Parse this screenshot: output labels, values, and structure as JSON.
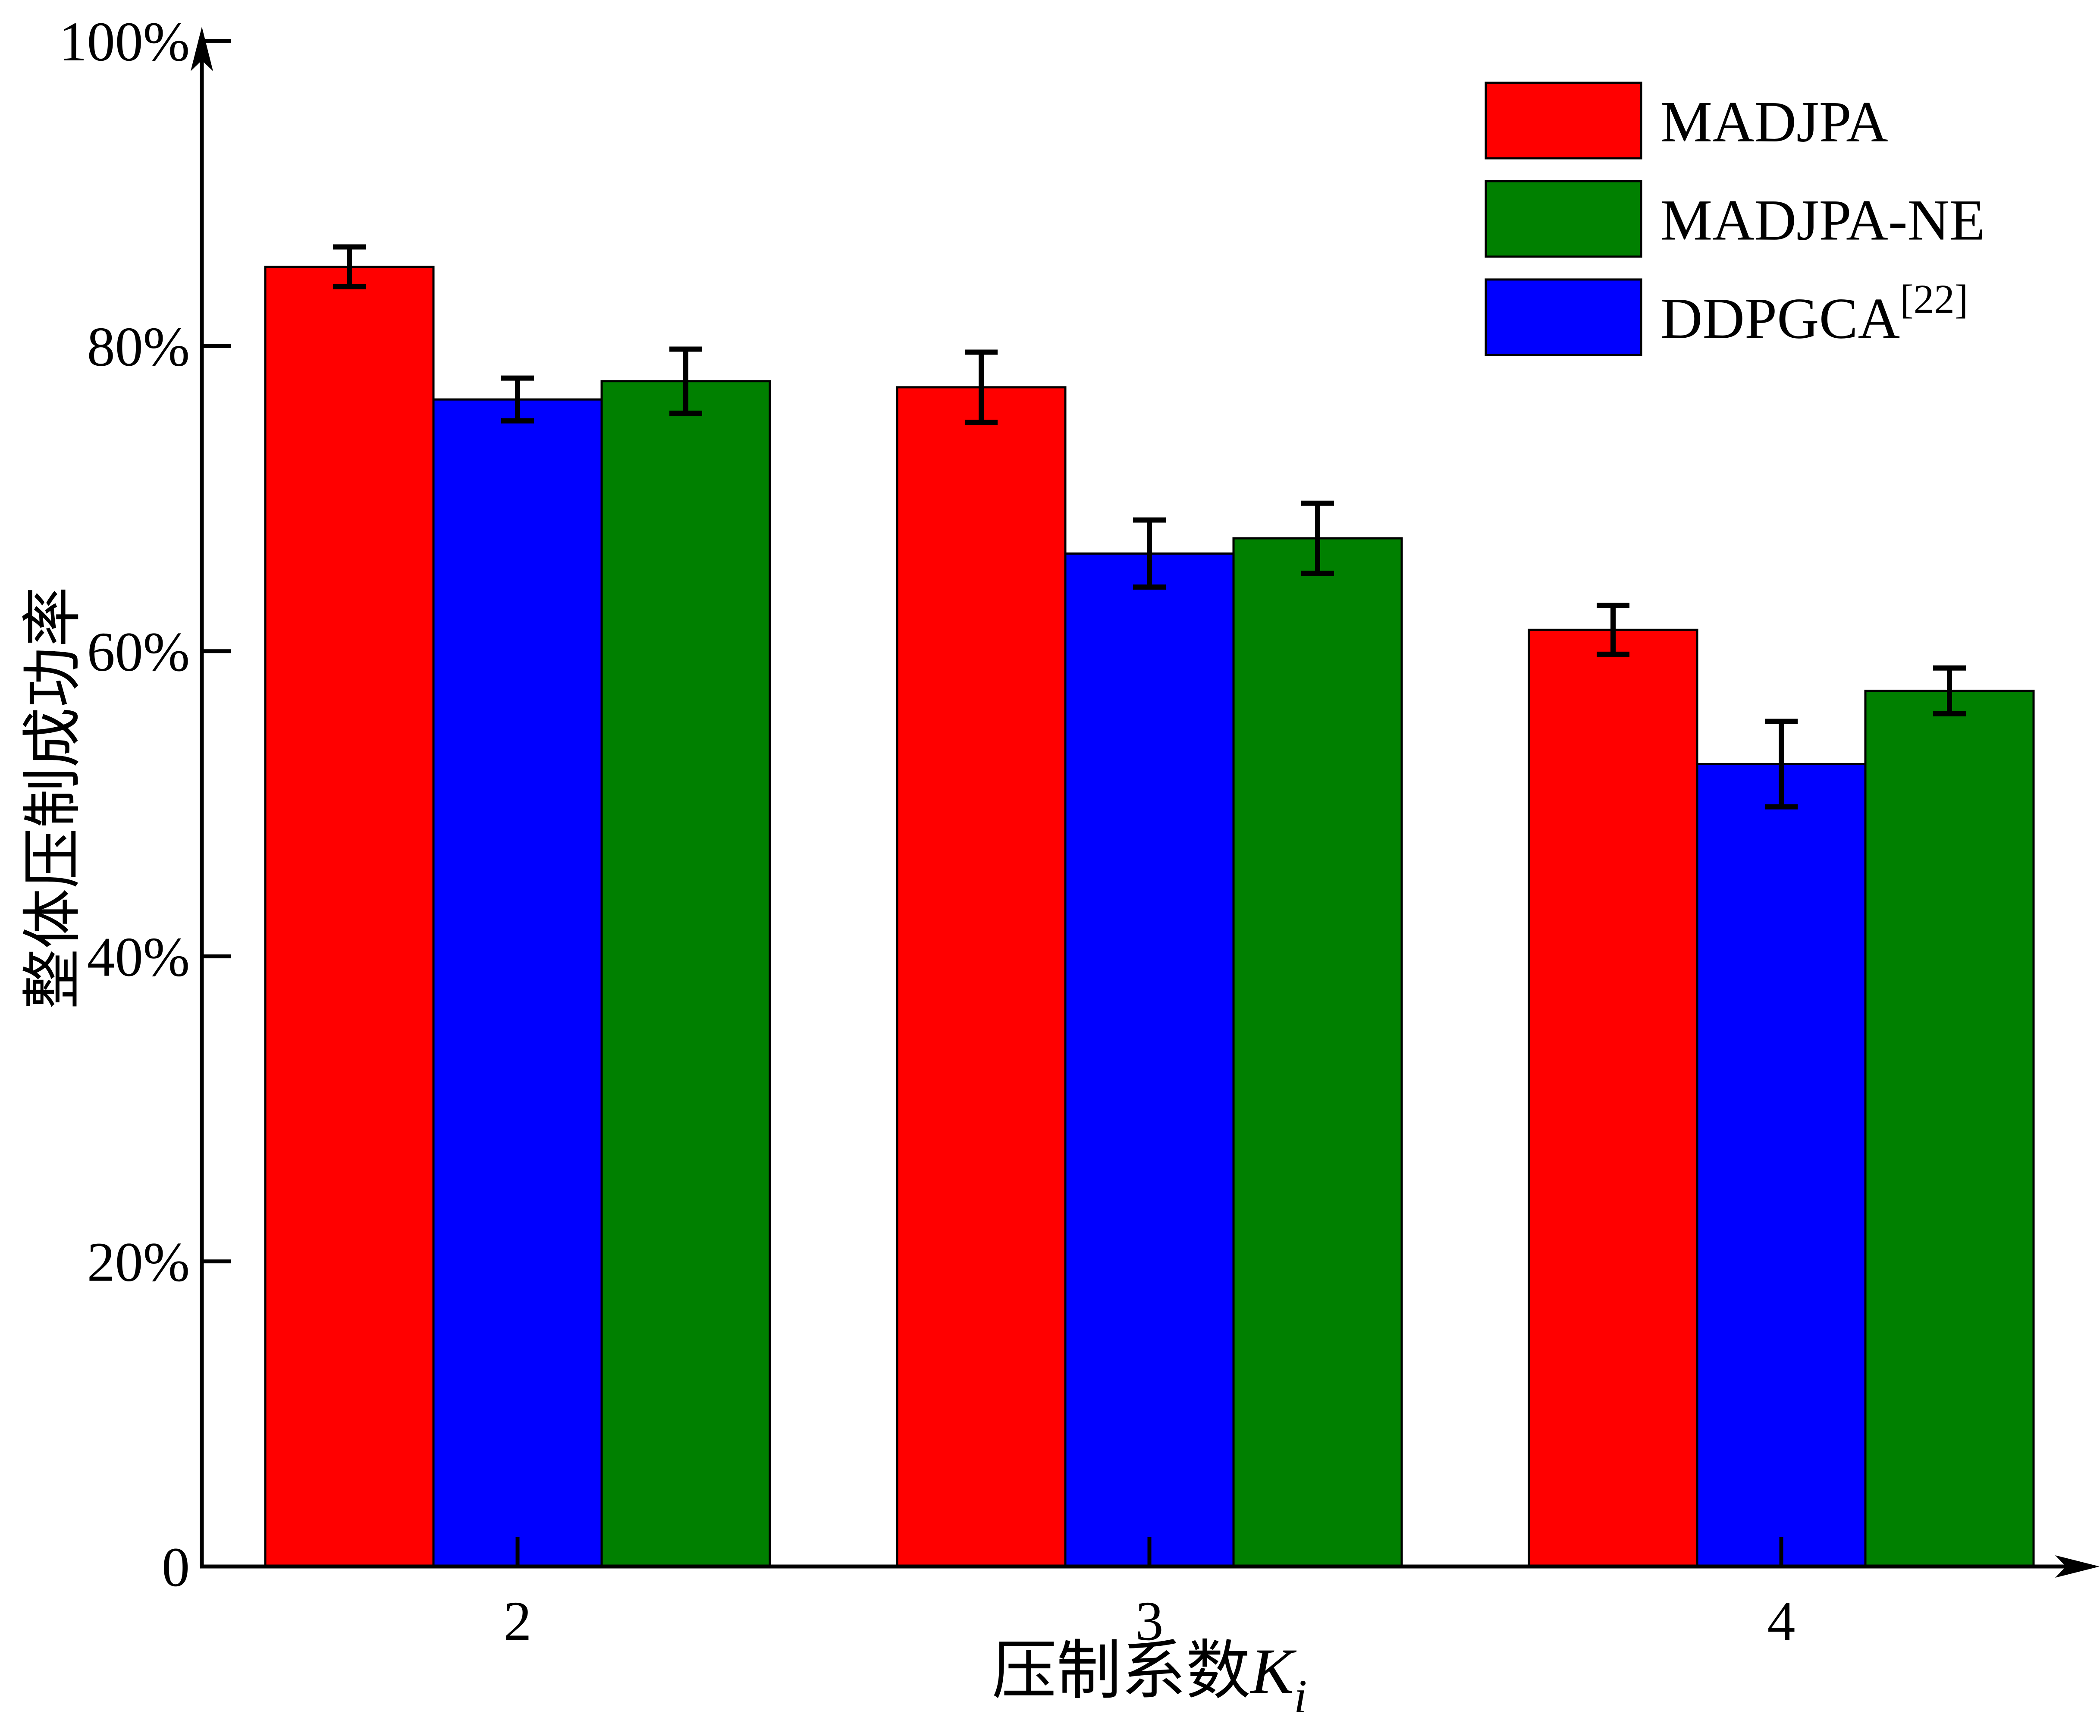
{
  "chart_data": {
    "type": "bar",
    "categories": [
      "2",
      "3",
      "4"
    ],
    "xlabel_main": "压制系数",
    "xlabel_var": "K",
    "xlabel_sub": "i",
    "ylabel": "整体压制成功率",
    "ylim": [
      0,
      100
    ],
    "yticks": [
      0,
      20,
      40,
      60,
      80,
      100
    ],
    "ytick_labels": [
      "0",
      "20%",
      "40%",
      "60%",
      "80%",
      "100%"
    ],
    "legend_position": "top-right",
    "grid": false,
    "series": [
      {
        "name": "MADJPA",
        "color": "#ff0000",
        "values": [
          85.2,
          77.3,
          61.4
        ],
        "errors": [
          1.3,
          2.3,
          1.6
        ]
      },
      {
        "name": "DDPGCA[22]",
        "color": "#0000ff",
        "values": [
          76.5,
          66.4,
          52.6
        ],
        "errors": [
          1.4,
          2.2,
          2.8
        ]
      },
      {
        "name": "MADJPA-NE",
        "color": "#008000",
        "values": [
          77.7,
          67.4,
          57.4
        ],
        "errors": [
          2.1,
          2.3,
          1.5
        ]
      }
    ],
    "legend": [
      {
        "label": "MADJPA",
        "color": "#ff0000"
      },
      {
        "label": "MADJPA-NE",
        "color": "#008000"
      },
      {
        "label": "DDPGCA",
        "sup": "[22]",
        "color": "#0000ff"
      }
    ]
  }
}
